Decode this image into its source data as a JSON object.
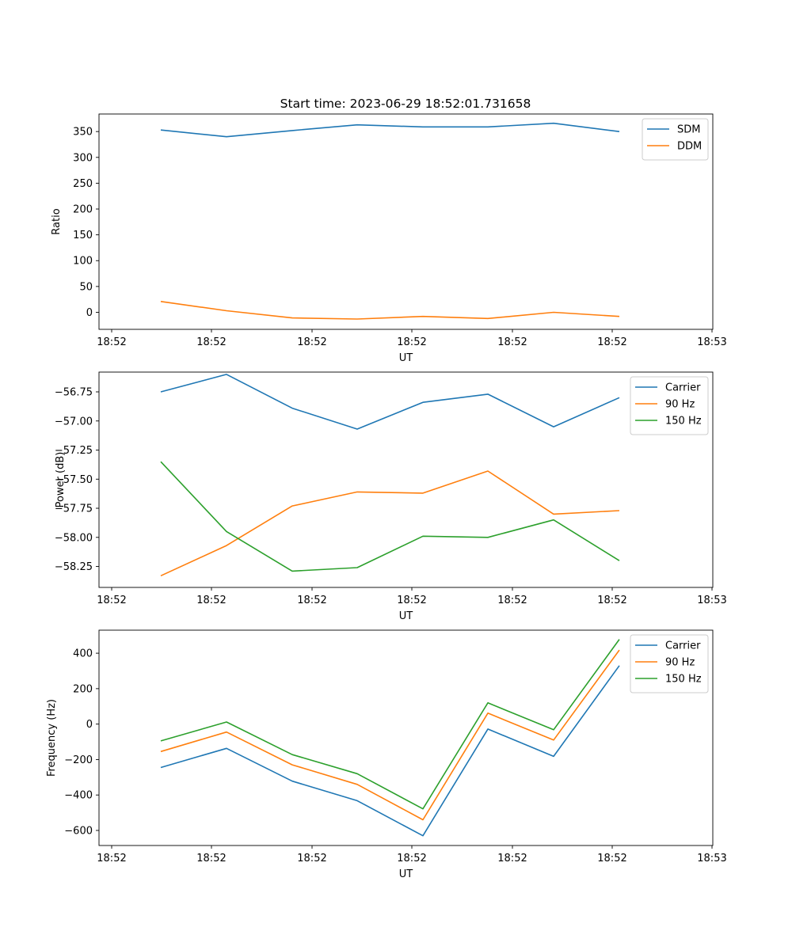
{
  "title": "Start time: 2023-06-29 18:52:01.731658",
  "chart_data": [
    {
      "type": "line",
      "xlabel": "UT",
      "ylabel": "Ratio",
      "x_tick_labels": [
        "18:52",
        "18:52",
        "18:52",
        "18:52",
        "18:52",
        "18:52",
        "18:53"
      ],
      "ylim": [
        -33,
        384
      ],
      "yticks": [
        0,
        50,
        100,
        150,
        200,
        250,
        300,
        350
      ],
      "y_tick_labels": [
        "0",
        "50",
        "100",
        "150",
        "200",
        "250",
        "300",
        "350"
      ],
      "legend_position": "top-right",
      "series": [
        {
          "name": "SDM",
          "color": "#1f77b4",
          "values": [
            353,
            340,
            352,
            363,
            359,
            359,
            366,
            350
          ]
        },
        {
          "name": "DDM",
          "color": "#ff7f0e",
          "values": [
            21,
            3,
            -11,
            -13,
            -8,
            -12,
            0,
            -8
          ]
        }
      ]
    },
    {
      "type": "line",
      "xlabel": "UT",
      "ylabel": "Power (dB)",
      "x_tick_labels": [
        "18:52",
        "18:52",
        "18:52",
        "18:52",
        "18:52",
        "18:52",
        "18:53"
      ],
      "ylim": [
        -58.43,
        -56.58
      ],
      "yticks": [
        -58.25,
        -58.0,
        -57.75,
        -57.5,
        -57.25,
        -57.0,
        -56.75
      ],
      "y_tick_labels": [
        "−58.25",
        "−58.00",
        "−57.75",
        "−57.50",
        "−57.25",
        "−57.00",
        "−56.75"
      ],
      "legend_position": "top-right",
      "series": [
        {
          "name": "Carrier",
          "color": "#1f77b4",
          "values": [
            -56.75,
            -56.6,
            -56.89,
            -57.07,
            -56.84,
            -56.77,
            -57.05,
            -56.8
          ]
        },
        {
          "name": "90 Hz",
          "color": "#ff7f0e",
          "values": [
            -58.33,
            -58.07,
            -57.73,
            -57.61,
            -57.62,
            -57.43,
            -57.8,
            -57.77
          ]
        },
        {
          "name": "150 Hz",
          "color": "#2ca02c",
          "values": [
            -57.35,
            -57.95,
            -58.29,
            -58.26,
            -57.99,
            -58.0,
            -57.85,
            -58.2
          ]
        }
      ]
    },
    {
      "type": "line",
      "xlabel": "UT",
      "ylabel": "Frequency (Hz)",
      "x_tick_labels": [
        "18:52",
        "18:52",
        "18:52",
        "18:52",
        "18:52",
        "18:52",
        "18:53"
      ],
      "ylim": [
        -685,
        530
      ],
      "yticks": [
        -600,
        -400,
        -200,
        0,
        200,
        400
      ],
      "y_tick_labels": [
        "−600",
        "−400",
        "−200",
        "0",
        "200",
        "400"
      ],
      "legend_position": "top-right",
      "series": [
        {
          "name": "Carrier",
          "color": "#1f77b4",
          "values": [
            -245,
            -137,
            -322,
            -432,
            -630,
            -28,
            -182,
            330
          ]
        },
        {
          "name": "90 Hz",
          "color": "#ff7f0e",
          "values": [
            -155,
            -45,
            -230,
            -340,
            -540,
            62,
            -90,
            418
          ]
        },
        {
          "name": "150 Hz",
          "color": "#2ca02c",
          "values": [
            -95,
            12,
            -172,
            -280,
            -478,
            120,
            -32,
            478
          ]
        }
      ]
    }
  ]
}
